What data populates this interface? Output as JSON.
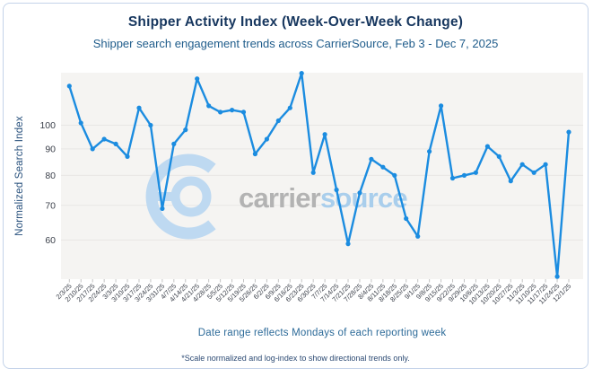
{
  "card": {
    "title": "Shipper Activity Index (Week-Over-Week Change)",
    "subtitle": "Shipper search engagement trends across CarrierSource, Feb 3 - Dec 7, 2025",
    "caption": "Date range reflects Mondays of each reporting week",
    "footnote": "*Scale normalized and log-index to show directional trends only."
  },
  "watermark": {
    "text_gray": "carrier",
    "text_blue": "source"
  },
  "colors": {
    "line": "#1b8ce0",
    "plot_bg": "#f5f4f2",
    "grid": "#e8e7e5",
    "tick_text": "#3c414b",
    "x_tick_mark": "#c2c2c2",
    "watermark_gray": "#b3b3b3",
    "watermark_blue": "#a9ceec",
    "logo_blue": "#bed9f1"
  },
  "chart_data": {
    "type": "line",
    "title": "Shipper Activity Index (Week-Over-Week Change)",
    "xlabel": "Date range reflects Mondays of each reporting week",
    "ylabel": "Normalized Search Index",
    "y_scale": "log",
    "y_ticks": [
      60,
      70,
      80,
      90,
      100
    ],
    "grid": true,
    "legend": "none",
    "categories": [
      "2/3/25",
      "2/10/25",
      "2/17/25",
      "2/24/25",
      "3/3/25",
      "3/10/25",
      "3/17/25",
      "3/24/25",
      "3/31/25",
      "4/7/25",
      "4/14/25",
      "4/21/25",
      "4/28/25",
      "5/5/25",
      "5/12/25",
      "5/19/25",
      "5/26/25",
      "6/2/25",
      "6/9/25",
      "6/16/25",
      "6/23/25",
      "6/30/25",
      "7/7/25",
      "7/14/25",
      "7/21/25",
      "7/28/25",
      "8/4/25",
      "8/11/25",
      "8/18/25",
      "8/25/25",
      "9/1/25",
      "9/8/25",
      "9/15/25",
      "9/22/25",
      "9/29/25",
      "10/6/25",
      "10/13/25",
      "10/20/25",
      "10/27/25",
      "11/3/25",
      "11/10/25",
      "11/17/25",
      "11/24/25",
      "12/1/25"
    ],
    "values": [
      119,
      101,
      90,
      94,
      92,
      87,
      108,
      100,
      69,
      92,
      98,
      123,
      109,
      106,
      107,
      106,
      88,
      94,
      102,
      108,
      126,
      81,
      96,
      75,
      59,
      74,
      86,
      83,
      80,
      66,
      61,
      89,
      109,
      79,
      80,
      81,
      91,
      87,
      78,
      84,
      81,
      84,
      51,
      97
    ]
  }
}
